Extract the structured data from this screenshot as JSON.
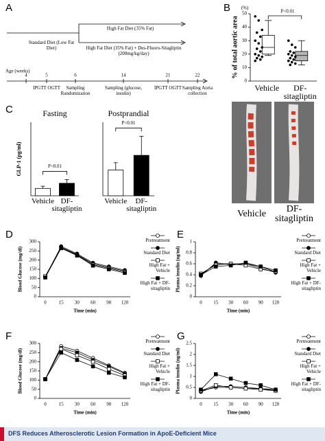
{
  "timeline": {
    "panel": "A",
    "standard_diet": "Standard Diet (Low Fat Diet)",
    "high_fat": "High Fat Diet (35% Fat)",
    "high_fat_dfs": "High Fat Diet (35% Fat) + Des-Fluoro-Sitagliptin (200mg/kg/day)",
    "axis_label": "Age (weeks)",
    "weeks": [
      4,
      5,
      6,
      14,
      21,
      22
    ],
    "events": [
      "IPGTT OGTT",
      "Sampling Randomization",
      "Sampling (glucose, insulin)",
      "IPGTT OGTT",
      "Sampling Aorta collection"
    ]
  },
  "photo": {
    "labels": [
      "Vehicle",
      "DF-sitagliptin"
    ]
  },
  "caption": "DFS Reduces Atherosclerotic Lesion Formation in ApoE-Deficient Mice",
  "chart_data": [
    {
      "type": "box",
      "panel": "B",
      "y_label": "% of total aortic area",
      "unit": "(%)",
      "annotation": "P<0.01",
      "categories": [
        "Vehicle",
        "DF-sitagliptin"
      ],
      "colors": [
        "#ffffff",
        "#b5b5b5"
      ],
      "boxes": [
        {
          "min": 19,
          "q1": 20,
          "median": 25,
          "q3": 34,
          "max": 45
        },
        {
          "min": 12,
          "q1": 15,
          "median": 19,
          "q3": 22,
          "max": 30
        }
      ],
      "points": [
        [
          48,
          45,
          38,
          36,
          33,
          30,
          28,
          25,
          24,
          22,
          20,
          19,
          18,
          17,
          16,
          15
        ],
        [
          30,
          27,
          25,
          22,
          21,
          20,
          19,
          18,
          17,
          16,
          15,
          14,
          13,
          12
        ]
      ],
      "ylim": [
        0,
        50
      ],
      "yticks": [
        0,
        10,
        20,
        30,
        40,
        50
      ]
    },
    {
      "type": "bar",
      "panel": "C",
      "title": "Fasting",
      "y_label": "GLP-1 (pg/ml)",
      "annotation": "P<0.01",
      "categories": [
        "Vehicle",
        "DF-sitagliptin"
      ],
      "values": [
        10,
        17
      ],
      "errors": [
        3,
        5
      ],
      "colors": [
        "#ffffff",
        "#000000"
      ],
      "ylim": [
        0,
        100
      ]
    },
    {
      "type": "bar",
      "title": "Postprandial",
      "annotation": "P<0.01",
      "categories": [
        "Vehicle",
        "DF-sitagliptin"
      ],
      "values": [
        35,
        55
      ],
      "errors": [
        10,
        26
      ],
      "colors": [
        "#ffffff",
        "#000000"
      ],
      "ylim": [
        0,
        100
      ]
    },
    {
      "type": "line",
      "panel": "D",
      "y_label": "Blood Glucose (mg/dl)",
      "x_label": "Time (min)",
      "categories": [
        "0",
        "15",
        "30",
        "60",
        "90",
        "120"
      ],
      "ylim": [
        0,
        300
      ],
      "yticks": [
        0,
        50,
        100,
        150,
        200,
        250,
        300
      ],
      "series": [
        {
          "name": "Pretreatment",
          "color": "#000000",
          "marker": "open-circle",
          "values": [
            110,
            270,
            230,
            180,
            160,
            140
          ]
        },
        {
          "name": "Standard Diet",
          "color": "#000000",
          "marker": "filled-circle",
          "values": [
            108,
            275,
            235,
            185,
            165,
            145
          ]
        },
        {
          "name": "High Fat + Vehicle",
          "color": "#000000",
          "marker": "open-square",
          "values": [
            112,
            268,
            228,
            175,
            155,
            135
          ]
        },
        {
          "name": "High Fat + DF-sitagliptin",
          "color": "#000000",
          "marker": "filled-square",
          "values": [
            105,
            265,
            225,
            170,
            150,
            130
          ]
        }
      ]
    },
    {
      "type": "line",
      "panel": "E",
      "y_label": "Plasma insulin (ng/ml)",
      "x_label": "Time (min)",
      "categories": [
        "0",
        "15",
        "30",
        "60",
        "90",
        "120"
      ],
      "ylim": [
        0,
        1
      ],
      "yticks": [
        0,
        0.2,
        0.4,
        0.6,
        0.8,
        1
      ],
      "series": [
        {
          "name": "Pretreatment",
          "color": "#000000",
          "marker": "open-circle",
          "values": [
            0.4,
            0.6,
            0.6,
            0.6,
            0.55,
            0.45
          ]
        },
        {
          "name": "Standard Diet",
          "color": "#000000",
          "marker": "filled-circle",
          "values": [
            0.38,
            0.62,
            0.58,
            0.6,
            0.52,
            0.44
          ]
        },
        {
          "name": "High Fat + Vehicle",
          "color": "#000000",
          "marker": "open-square",
          "values": [
            0.42,
            0.58,
            0.6,
            0.57,
            0.5,
            0.46
          ]
        },
        {
          "name": "High Fat + DF-sitagliptin",
          "color": "#000000",
          "marker": "filled-square",
          "values": [
            0.4,
            0.55,
            0.57,
            0.62,
            0.55,
            0.48
          ]
        }
      ]
    },
    {
      "type": "line",
      "panel": "F",
      "y_label": "Blood Glucose (mg/dl)",
      "x_label": "Time (min)",
      "categories": [
        "0",
        "15",
        "30",
        "60",
        "90",
        "120"
      ],
      "ylim": [
        0,
        300
      ],
      "yticks": [
        0,
        50,
        100,
        150,
        200,
        250,
        300
      ],
      "series": [
        {
          "name": "Pretreatment",
          "color": "#000000",
          "marker": "open-circle",
          "values": [
            105,
            285,
            260,
            220,
            180,
            140
          ]
        },
        {
          "name": "Standard Diet",
          "color": "#000000",
          "marker": "filled-circle",
          "values": [
            105,
            275,
            250,
            210,
            175,
            135
          ]
        },
        {
          "name": "High Fat + Vehicle",
          "color": "#000000",
          "marker": "open-square",
          "values": [
            105,
            270,
            235,
            200,
            160,
            125
          ]
        },
        {
          "name": "High Fat + DF-sitagliptin",
          "color": "#000000",
          "marker": "filled-square",
          "values": [
            105,
            250,
            210,
            175,
            140,
            115
          ]
        }
      ]
    },
    {
      "type": "line",
      "panel": "G",
      "y_label": "Plasma insulin (ng/ml)",
      "x_label": "Time (min)",
      "categories": [
        "0",
        "15",
        "30",
        "60",
        "90",
        "120"
      ],
      "ylim": [
        0,
        2.5
      ],
      "yticks": [
        0,
        0.5,
        1,
        1.5,
        2,
        2.5
      ],
      "series": [
        {
          "name": "Pretreatment",
          "color": "#000000",
          "marker": "open-circle",
          "values": [
            0.35,
            0.5,
            0.5,
            0.45,
            0.45,
            0.4
          ]
        },
        {
          "name": "Standard Diet",
          "color": "#000000",
          "marker": "filled-circle",
          "values": [
            0.3,
            0.55,
            0.55,
            0.5,
            0.45,
            0.35
          ]
        },
        {
          "name": "High Fat + Vehicle",
          "color": "#000000",
          "marker": "open-square",
          "values": [
            0.35,
            0.6,
            0.5,
            0.45,
            0.4,
            0.35
          ]
        },
        {
          "name": "High Fat + DF-sitagliptin",
          "color": "#000000",
          "marker": "filled-square",
          "values": [
            0.4,
            1.1,
            0.9,
            0.7,
            0.6,
            0.4
          ]
        }
      ]
    }
  ]
}
